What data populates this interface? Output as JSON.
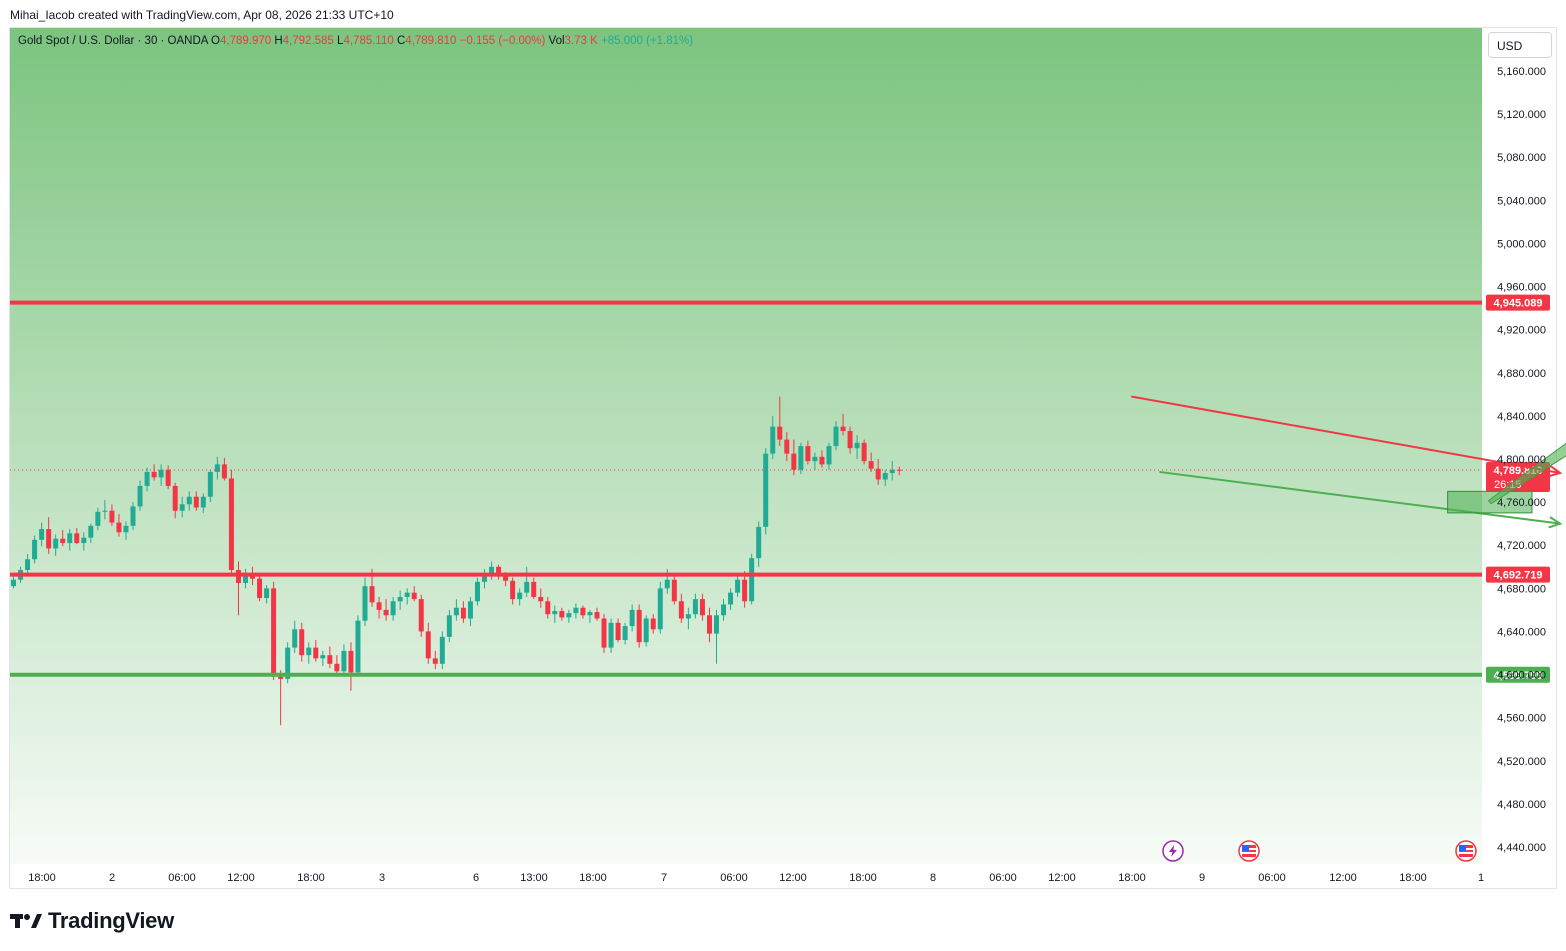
{
  "header": {
    "attribution": "Mihai_Iacob created with TradingView.com, Apr 08, 2026 21:33 UTC+10"
  },
  "legend": {
    "symbol": "Gold Spot / U.S. Dollar · 30 · OANDA",
    "o_label": "O",
    "o_value": "4,789.970",
    "h_label": "H",
    "h_value": "4,792.585",
    "l_label": "L",
    "l_value": "4,785.110",
    "c_label": "C",
    "c_value": "4,789.810",
    "change": "−0.155 (−0.00%)",
    "vol_label": "Vol",
    "vol_value": "3.73 K",
    "vol_change": "+85.000 (+1.81%)"
  },
  "currency_button": "USD",
  "brand": "TradingView",
  "colors": {
    "up": "#22ab94",
    "down": "#f23645",
    "resistance": "#f23645",
    "support": "#4caf50",
    "background_top": "#7cc47f",
    "background_bottom": "#f7fbf7"
  },
  "icons": [
    "lightning-event-icon",
    "us-flag-event-icon",
    "us-flag-event-icon"
  ],
  "chart_data": {
    "type": "candlestick",
    "title": "Gold Spot / U.S. Dollar · 30 · OANDA",
    "ylim": [
      4420,
      5190
    ],
    "y_ticks": [
      4440,
      4480,
      4520,
      4560,
      4600,
      4640,
      4680,
      4720,
      4760,
      4800,
      4840,
      4880,
      4920,
      4960,
      5000,
      5040,
      5080,
      5120,
      5160
    ],
    "y_tick_labels": [
      "4,440.000",
      "4,480.000",
      "4,520.000",
      "4,560.000",
      "4,600.000",
      "4,640.000",
      "4,680.000",
      "4,720.000",
      "4,760.000",
      "4,800.000",
      "4,840.000",
      "4,880.000",
      "4,920.000",
      "4,960.000",
      "5,000.000",
      "5,040.000",
      "5,080.000",
      "5,120.000",
      "5,160.000"
    ],
    "x_tick_labels": [
      "18:00",
      "2",
      "06:00",
      "12:00",
      "18:00",
      "3",
      "6",
      "13:00",
      "18:00",
      "7",
      "06:00",
      "12:00",
      "18:00",
      "8",
      "06:00",
      "12:00",
      "18:00",
      "9",
      "06:00",
      "12:00",
      "18:00",
      "1"
    ],
    "grid": false,
    "current_price": 4789.81,
    "current_price_label": "4,789.810",
    "countdown": "26:15",
    "levels": [
      {
        "name": "resistance",
        "value": 4945.089,
        "label": "4,945.089",
        "color": "#f23645"
      },
      {
        "name": "support-1",
        "value": 4692.719,
        "label": "4,692.719",
        "color": "#f23645"
      },
      {
        "name": "support-2",
        "value": 4599.799,
        "label": "4,599.799",
        "color": "#4caf50"
      }
    ],
    "drawings": [
      {
        "name": "upper-trendline",
        "color": "#f23645",
        "points": [
          [
            1159,
            4858
          ],
          [
            1220,
            4787
          ]
        ]
      },
      {
        "name": "lower-trendline",
        "color": "#4caf50",
        "points": [
          [
            1163,
            4788
          ],
          [
            1220,
            4740
          ]
        ]
      },
      {
        "name": "entry-zone",
        "color": "#4caf50",
        "x": [
          1204,
          1216
        ],
        "y": [
          4750,
          4770
        ]
      },
      {
        "name": "target-arrow",
        "color": "#4caf50",
        "points": [
          [
            1210,
            4760
          ],
          [
            1239,
            4890
          ]
        ]
      }
    ],
    "candles": [
      [
        4682.0,
        4692.0,
        4680.0,
        4688.0
      ],
      [
        4688.0,
        4700.0,
        4685.0,
        4697.0
      ],
      [
        4697.0,
        4712.0,
        4692.0,
        4707.0
      ],
      [
        4707.0,
        4729.0,
        4703.0,
        4725.0
      ],
      [
        4725.0,
        4741.0,
        4719.0,
        4735.0
      ],
      [
        4735.0,
        4746.0,
        4712.0,
        4717.0
      ],
      [
        4717.0,
        4730.0,
        4710.0,
        4726.0
      ],
      [
        4726.0,
        4734.0,
        4719.0,
        4722.0
      ],
      [
        4722.0,
        4735.0,
        4715.0,
        4731.0
      ],
      [
        4731.0,
        4736.0,
        4721.0,
        4722.0
      ],
      [
        4722.0,
        4732.0,
        4715.0,
        4727.0
      ],
      [
        4727.0,
        4740.0,
        4722.0,
        4738.0
      ],
      [
        4738.0,
        4755.0,
        4734.0,
        4751.0
      ],
      [
        4751.0,
        4762.0,
        4744.0,
        4752.0
      ],
      [
        4752.0,
        4758.0,
        4738.0,
        4741.0
      ],
      [
        4741.0,
        4749.0,
        4728.0,
        4732.0
      ],
      [
        4732.0,
        4742.0,
        4725.0,
        4738.0
      ],
      [
        4738.0,
        4760.0,
        4734.0,
        4756.0
      ],
      [
        4756.0,
        4780.0,
        4752.0,
        4775.0
      ],
      [
        4775.0,
        4792.0,
        4770.0,
        4788.0
      ],
      [
        4788.0,
        4795.0,
        4780.0,
        4783.0
      ],
      [
        4783.0,
        4795.0,
        4775.0,
        4790.0
      ],
      [
        4790.0,
        4794.0,
        4772.0,
        4775.0
      ],
      [
        4775.0,
        4778.0,
        4745.0,
        4752.0
      ],
      [
        4752.0,
        4765.0,
        4746.0,
        4758.0
      ],
      [
        4758.0,
        4770.0,
        4752.0,
        4765.0
      ],
      [
        4765.0,
        4770.0,
        4752.0,
        4755.0
      ],
      [
        4755.0,
        4768.0,
        4750.0,
        4765.0
      ],
      [
        4765.0,
        4790.0,
        4760.0,
        4788.0
      ],
      [
        4788.0,
        4802.0,
        4781.0,
        4795.0
      ],
      [
        4795.0,
        4801.0,
        4780.0,
        4782.0
      ],
      [
        4782.0,
        4790.0,
        4694.0,
        4697.0
      ],
      [
        4697.0,
        4705.0,
        4655.0,
        4685.0
      ],
      [
        4685.0,
        4698.0,
        4680.0,
        4693.0
      ],
      [
        4693.0,
        4700.0,
        4683.0,
        4689.0
      ],
      [
        4689.0,
        4693.0,
        4668.0,
        4671.0
      ],
      [
        4671.0,
        4683.0,
        4666.0,
        4680.0
      ],
      [
        4680.0,
        4686.0,
        4595.0,
        4598.0
      ],
      [
        4598.0,
        4604.0,
        4553.0,
        4596.0
      ],
      [
        4596.0,
        4630.0,
        4592.0,
        4625.0
      ],
      [
        4625.0,
        4650.0,
        4620.0,
        4642.0
      ],
      [
        4642.0,
        4648.0,
        4612.0,
        4618.0
      ],
      [
        4618.0,
        4630.0,
        4610.0,
        4625.0
      ],
      [
        4625.0,
        4632.0,
        4612.0,
        4615.0
      ],
      [
        4615.0,
        4622.0,
        4608.0,
        4618.0
      ],
      [
        4618.0,
        4626.0,
        4606.0,
        4610.0
      ],
      [
        4610.0,
        4618.0,
        4598.0,
        4603.0
      ],
      [
        4603.0,
        4628.0,
        4598.0,
        4622.0
      ],
      [
        4622.0,
        4630.0,
        4585.0,
        4602.0
      ],
      [
        4602.0,
        4655.0,
        4598.0,
        4650.0
      ],
      [
        4650.0,
        4690.0,
        4645.0,
        4682.0
      ],
      [
        4682.0,
        4698.0,
        4663.0,
        4667.0
      ],
      [
        4667.0,
        4672.0,
        4652.0,
        4660.0
      ],
      [
        4660.0,
        4670.0,
        4650.0,
        4655.0
      ],
      [
        4655.0,
        4672.0,
        4650.0,
        4668.0
      ],
      [
        4668.0,
        4678.0,
        4660.0,
        4672.0
      ],
      [
        4672.0,
        4680.0,
        4665.0,
        4676.0
      ],
      [
        4676.0,
        4682.0,
        4668.0,
        4670.0
      ],
      [
        4670.0,
        4674.0,
        4635.0,
        4640.0
      ],
      [
        4640.0,
        4648.0,
        4610.0,
        4615.0
      ],
      [
        4615.0,
        4622.0,
        4605.0,
        4610.0
      ],
      [
        4610.0,
        4640.0,
        4605.0,
        4635.0
      ],
      [
        4635.0,
        4660.0,
        4630.0,
        4655.0
      ],
      [
        4655.0,
        4670.0,
        4650.0,
        4662.0
      ],
      [
        4662.0,
        4668.0,
        4648.0,
        4652.0
      ],
      [
        4652.0,
        4672.0,
        4645.0,
        4668.0
      ],
      [
        4668.0,
        4690.0,
        4664.0,
        4686.0
      ],
      [
        4686.0,
        4698.0,
        4680.0,
        4694.0
      ],
      [
        4694.0,
        4705.0,
        4688.0,
        4700.0
      ],
      [
        4700.0,
        4702.0,
        4688.0,
        4692.0
      ],
      [
        4692.0,
        4695.0,
        4682.0,
        4687.0
      ],
      [
        4687.0,
        4690.0,
        4665.0,
        4670.0
      ],
      [
        4670.0,
        4680.0,
        4664.0,
        4676.0
      ],
      [
        4676.0,
        4700.0,
        4672.0,
        4686.0
      ],
      [
        4686.0,
        4690.0,
        4670.0,
        4672.0
      ],
      [
        4672.0,
        4680.0,
        4662.0,
        4668.0
      ],
      [
        4668.0,
        4672.0,
        4652.0,
        4656.0
      ],
      [
        4656.0,
        4664.0,
        4648.0,
        4659.0
      ],
      [
        4659.0,
        4662.0,
        4650.0,
        4653.0
      ],
      [
        4653.0,
        4660.0,
        4648.0,
        4657.0
      ],
      [
        4657.0,
        4666.0,
        4652.0,
        4662.0
      ],
      [
        4662.0,
        4664.0,
        4652.0,
        4655.0
      ],
      [
        4655.0,
        4660.0,
        4648.0,
        4658.0
      ],
      [
        4658.0,
        4662.0,
        4650.0,
        4652.0
      ],
      [
        4652.0,
        4656.0,
        4620.0,
        4625.0
      ],
      [
        4625.0,
        4652.0,
        4620.0,
        4648.0
      ],
      [
        4648.0,
        4652.0,
        4630.0,
        4632.0
      ],
      [
        4632.0,
        4648.0,
        4628.0,
        4645.0
      ],
      [
        4645.0,
        4665.0,
        4640.0,
        4660.0
      ],
      [
        4660.0,
        4665.0,
        4625.0,
        4630.0
      ],
      [
        4630.0,
        4655.0,
        4626.0,
        4652.0
      ],
      [
        4652.0,
        4656.0,
        4638.0,
        4642.0
      ],
      [
        4642.0,
        4686.0,
        4638.0,
        4680.0
      ],
      [
        4680.0,
        4698.0,
        4675.0,
        4688.0
      ],
      [
        4688.0,
        4692.0,
        4665.0,
        4668.0
      ],
      [
        4668.0,
        4675.0,
        4648.0,
        4652.0
      ],
      [
        4652.0,
        4662.0,
        4642.0,
        4656.0
      ],
      [
        4656.0,
        4675.0,
        4652.0,
        4670.0
      ],
      [
        4670.0,
        4675.0,
        4650.0,
        4655.0
      ],
      [
        4655.0,
        4662.0,
        4630.0,
        4638.0
      ],
      [
        4638.0,
        4660.0,
        4610.0,
        4655.0
      ],
      [
        4655.0,
        4670.0,
        4650.0,
        4665.0
      ],
      [
        4665.0,
        4680.0,
        4660.0,
        4676.0
      ],
      [
        4676.0,
        4692.0,
        4672.0,
        4688.0
      ],
      [
        4688.0,
        4696.0,
        4662.0,
        4668.0
      ],
      [
        4668.0,
        4712.0,
        4665.0,
        4708.0
      ],
      [
        4708.0,
        4742.0,
        4700.0,
        4737.0
      ],
      [
        4737.0,
        4810.0,
        4730.0,
        4805.0
      ],
      [
        4805.0,
        4840.0,
        4800.0,
        4830.0
      ],
      [
        4830.0,
        4858.0,
        4812.0,
        4818.0
      ],
      [
        4818.0,
        4825.0,
        4798.0,
        4805.0
      ],
      [
        4805.0,
        4818.0,
        4785.0,
        4790.0
      ],
      [
        4790.0,
        4815.0,
        4786.0,
        4812.0
      ],
      [
        4812.0,
        4817.0,
        4795.0,
        4798.0
      ],
      [
        4798.0,
        4806.0,
        4790.0,
        4802.0
      ],
      [
        4802.0,
        4808.0,
        4792.0,
        4795.0
      ],
      [
        4795.0,
        4815.0,
        4790.0,
        4812.0
      ],
      [
        4812.0,
        4835.0,
        4808.0,
        4830.0
      ],
      [
        4830.0,
        4842.0,
        4822.0,
        4826.0
      ],
      [
        4826.0,
        4830.0,
        4805.0,
        4810.0
      ],
      [
        4810.0,
        4822.0,
        4800.0,
        4815.0
      ],
      [
        4815.0,
        4818.0,
        4795.0,
        4798.0
      ],
      [
        4798.0,
        4806.0,
        4788.0,
        4791.0
      ],
      [
        4791.0,
        4800.0,
        4776.0,
        4781.0
      ],
      [
        4781.0,
        4790.0,
        4775.0,
        4787.0
      ],
      [
        4787.0,
        4798.0,
        4780.0,
        4790.0
      ],
      [
        4790.0,
        4793.0,
        4785.0,
        4789.8
      ]
    ]
  }
}
